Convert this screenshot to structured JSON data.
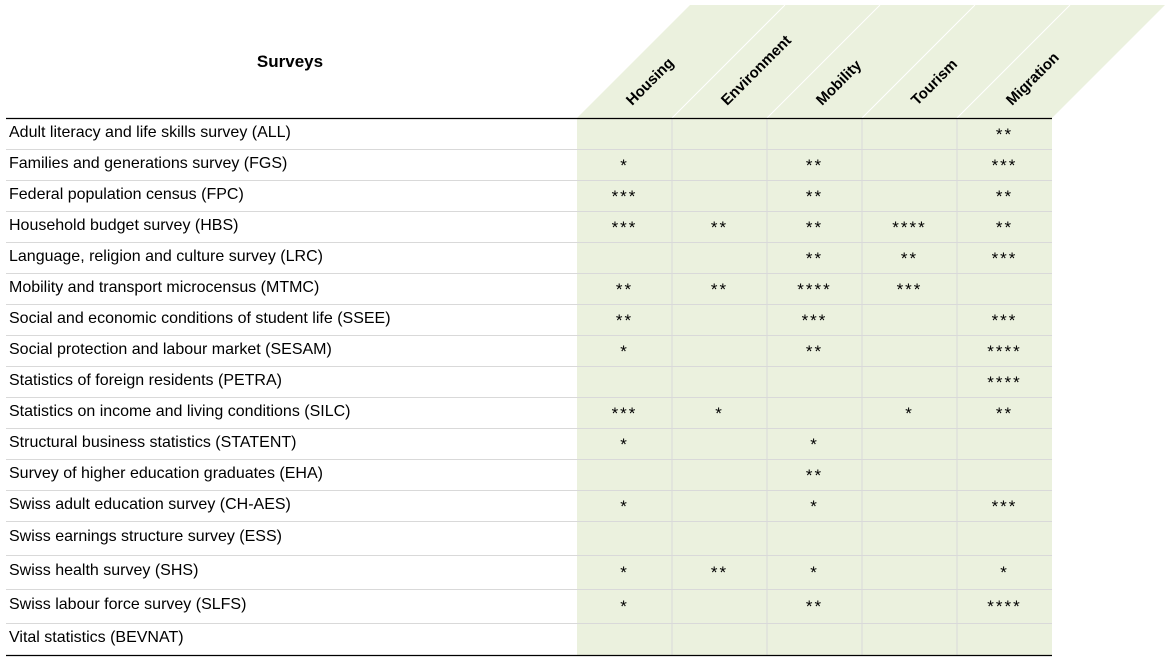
{
  "table": {
    "title": "Surveys",
    "columns": [
      "Housing",
      "Environment",
      "Mobility",
      "Tourism",
      "Migration"
    ],
    "rows": [
      {
        "label": "Adult literacy and life skills survey (ALL)",
        "cells": [
          "",
          "",
          "",
          "",
          "**"
        ]
      },
      {
        "label": "Families and generations survey (FGS)",
        "cells": [
          "*",
          "",
          "**",
          "",
          "***"
        ]
      },
      {
        "label": "Federal population census (FPC)",
        "cells": [
          "***",
          "",
          "**",
          "",
          "**"
        ]
      },
      {
        "label": "Household budget survey (HBS)",
        "cells": [
          "***",
          "**",
          "**",
          "****",
          "**"
        ]
      },
      {
        "label": "Language, religion and culture survey (LRC)",
        "cells": [
          "",
          "",
          "**",
          "**",
          "***"
        ]
      },
      {
        "label": "Mobility and transport microcensus (MTMC)",
        "cells": [
          "**",
          "**",
          "****",
          "***",
          ""
        ]
      },
      {
        "label": "Social and economic conditions of student life (SSEE)",
        "cells": [
          "**",
          "",
          "***",
          "",
          "***"
        ]
      },
      {
        "label": "Social protection and labour market (SESAM)",
        "cells": [
          "*",
          "",
          "**",
          "",
          "****"
        ]
      },
      {
        "label": "Statistics of foreign residents (PETRA)",
        "cells": [
          "",
          "",
          "",
          "",
          "****"
        ]
      },
      {
        "label": "Statistics on income and living conditions (SILC)",
        "cells": [
          "***",
          "*",
          "",
          "*",
          "**"
        ]
      },
      {
        "label": "Structural business statistics (STATENT)",
        "cells": [
          "*",
          "",
          "*",
          "",
          ""
        ]
      },
      {
        "label": "Survey of higher education graduates (EHA)",
        "cells": [
          "",
          "",
          "**",
          "",
          ""
        ]
      },
      {
        "label": "Swiss adult education survey (CH-AES)",
        "cells": [
          "*",
          "",
          "*",
          "",
          "***"
        ]
      },
      {
        "label": "Swiss earnings structure survey (ESS)",
        "cells": [
          "",
          "",
          "",
          "",
          ""
        ]
      },
      {
        "label": "Swiss health survey (SHS)",
        "cells": [
          "*",
          "**",
          "*",
          "",
          "*"
        ]
      },
      {
        "label": "Swiss labour force survey (SLFS)",
        "cells": [
          "*",
          "",
          "**",
          "",
          "****"
        ]
      },
      {
        "label": "Vital statistics (BEVNAT)",
        "cells": [
          "",
          "",
          "",
          "",
          ""
        ]
      }
    ],
    "shade_color": "#ebf1de",
    "line_color": "#d9d9d9",
    "border_color": "#000000"
  }
}
